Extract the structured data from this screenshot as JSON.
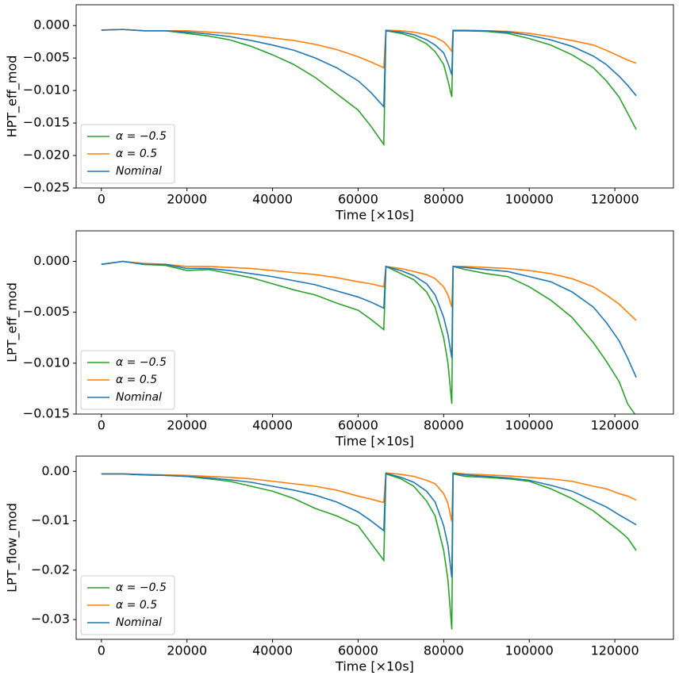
{
  "chart_data": [
    {
      "type": "line",
      "xlabel": "Time [×10s]",
      "ylabel": "HPT_eff_mod",
      "x": [
        0,
        5000,
        10000,
        15000,
        20000,
        25000,
        30000,
        35000,
        40000,
        45000,
        50000,
        55000,
        60000,
        63000,
        66000,
        66500,
        70000,
        73000,
        76000,
        78000,
        80000,
        81000,
        81900,
        82200,
        85000,
        90000,
        95000,
        100000,
        105000,
        110000,
        115000,
        118000,
        121000,
        123000,
        125000
      ],
      "series": [
        {
          "name": "α = −0.5",
          "color": "#2ca02c",
          "values": [
            -0.0007,
            -0.0006,
            -0.0008,
            -0.0008,
            -0.0012,
            -0.0016,
            -0.0022,
            -0.0032,
            -0.0045,
            -0.006,
            -0.008,
            -0.0105,
            -0.013,
            -0.0155,
            -0.0183,
            -0.0008,
            -0.0012,
            -0.0018,
            -0.0028,
            -0.004,
            -0.006,
            -0.0085,
            -0.011,
            -0.0008,
            -0.0008,
            -0.0009,
            -0.0012,
            -0.002,
            -0.003,
            -0.0045,
            -0.0065,
            -0.0085,
            -0.011,
            -0.0135,
            -0.016
          ]
        },
        {
          "name": "α = 0.5",
          "color": "#ff7f0e",
          "values": [
            -0.0007,
            -0.0006,
            -0.0008,
            -0.0008,
            -0.0008,
            -0.001,
            -0.0012,
            -0.0015,
            -0.0019,
            -0.0023,
            -0.0029,
            -0.0037,
            -0.0048,
            -0.0056,
            -0.0065,
            -0.0007,
            -0.0008,
            -0.001,
            -0.0014,
            -0.0018,
            -0.0025,
            -0.0032,
            -0.004,
            -0.0007,
            -0.0007,
            -0.0008,
            -0.0009,
            -0.0012,
            -0.0017,
            -0.0023,
            -0.003,
            -0.0038,
            -0.0047,
            -0.0053,
            -0.0058
          ]
        },
        {
          "name": "Nominal",
          "color": "#1f77b4",
          "values": [
            -0.0007,
            -0.0006,
            -0.0008,
            -0.0008,
            -0.001,
            -0.0013,
            -0.0017,
            -0.0023,
            -0.003,
            -0.0038,
            -0.005,
            -0.0065,
            -0.0085,
            -0.0103,
            -0.0125,
            -0.0008,
            -0.001,
            -0.0014,
            -0.0022,
            -0.003,
            -0.0042,
            -0.0058,
            -0.0076,
            -0.0008,
            -0.0008,
            -0.0008,
            -0.001,
            -0.0015,
            -0.0022,
            -0.0032,
            -0.0047,
            -0.006,
            -0.0078,
            -0.0092,
            -0.0108
          ]
        }
      ],
      "xlim": [
        -5900,
        133700
      ],
      "ylim": [
        -0.025,
        0.0032
      ],
      "xticks": [
        0,
        20000,
        40000,
        60000,
        80000,
        100000,
        120000
      ],
      "yticks": [
        {
          "value": 0,
          "label": "0.000"
        },
        {
          "value": -0.005,
          "label": "−0.005"
        },
        {
          "value": -0.01,
          "label": "−0.010"
        },
        {
          "value": -0.015,
          "label": "−0.015"
        },
        {
          "value": -0.02,
          "label": "−0.020"
        },
        {
          "value": -0.025,
          "label": "−0.025"
        }
      ],
      "legend": "lower left"
    },
    {
      "type": "line",
      "xlabel": "Time [×10s]",
      "ylabel": "LPT_eff_mod",
      "x": [
        0,
        5000,
        10000,
        15000,
        20000,
        25000,
        30000,
        35000,
        40000,
        45000,
        50000,
        55000,
        60000,
        63000,
        66000,
        66500,
        70000,
        73000,
        76000,
        78000,
        80000,
        81000,
        81900,
        82200,
        85000,
        90000,
        95000,
        100000,
        105000,
        110000,
        115000,
        118000,
        121000,
        123000,
        125000
      ],
      "series": [
        {
          "name": "α = −0.5",
          "color": "#2ca02c",
          "values": [
            -0.0003,
            0,
            -0.0003,
            -0.0004,
            -0.0009,
            -0.0008,
            -0.0012,
            -0.0016,
            -0.0022,
            -0.0028,
            -0.0033,
            -0.0041,
            -0.0048,
            -0.0057,
            -0.0067,
            -0.0005,
            -0.0012,
            -0.0018,
            -0.003,
            -0.0045,
            -0.0075,
            -0.01,
            -0.014,
            -0.0005,
            -0.0008,
            -0.0012,
            -0.0015,
            -0.0025,
            -0.0038,
            -0.0055,
            -0.008,
            -0.0098,
            -0.0118,
            -0.014,
            -0.0152
          ]
        },
        {
          "name": "α = 0.5",
          "color": "#ff7f0e",
          "values": [
            -0.0003,
            0,
            -0.0002,
            -0.0003,
            -0.0005,
            -0.0005,
            -0.0006,
            -0.0007,
            -0.0009,
            -0.0011,
            -0.0013,
            -0.0016,
            -0.002,
            -0.0022,
            -0.0025,
            -0.0005,
            -0.0007,
            -0.001,
            -0.0013,
            -0.0017,
            -0.0025,
            -0.0033,
            -0.0045,
            -0.0005,
            -0.0005,
            -0.0006,
            -0.0007,
            -0.0009,
            -0.0012,
            -0.0017,
            -0.0025,
            -0.0033,
            -0.0042,
            -0.005,
            -0.0058
          ]
        },
        {
          "name": "Nominal",
          "color": "#1f77b4",
          "values": [
            -0.0003,
            0,
            -0.0003,
            -0.0003,
            -0.0007,
            -0.0007,
            -0.0009,
            -0.0012,
            -0.0015,
            -0.0019,
            -0.0023,
            -0.0029,
            -0.0035,
            -0.004,
            -0.0046,
            -0.0005,
            -0.0009,
            -0.0014,
            -0.0022,
            -0.0033,
            -0.0055,
            -0.0072,
            -0.0095,
            -0.0005,
            -0.0006,
            -0.0008,
            -0.001,
            -0.0015,
            -0.002,
            -0.003,
            -0.0045,
            -0.006,
            -0.0078,
            -0.0095,
            -0.0114
          ]
        }
      ],
      "xlim": [
        -5900,
        133700
      ],
      "ylim": [
        -0.015,
        0.003
      ],
      "xticks": [
        0,
        20000,
        40000,
        60000,
        80000,
        100000,
        120000
      ],
      "yticks": [
        {
          "value": 0,
          "label": "0.000"
        },
        {
          "value": -0.005,
          "label": "−0.005"
        },
        {
          "value": -0.01,
          "label": "−0.010"
        },
        {
          "value": -0.015,
          "label": "−0.015"
        }
      ],
      "legend": "lower left"
    },
    {
      "type": "line",
      "xlabel": "Time [×10s]",
      "ylabel": "LPT_flow_mod",
      "x": [
        0,
        5000,
        10000,
        15000,
        20000,
        25000,
        30000,
        35000,
        40000,
        45000,
        50000,
        55000,
        60000,
        63000,
        66000,
        66500,
        70000,
        73000,
        76000,
        78000,
        80000,
        81000,
        81900,
        82200,
        85000,
        90000,
        95000,
        100000,
        105000,
        110000,
        115000,
        118000,
        121000,
        123000,
        125000
      ],
      "series": [
        {
          "name": "α = −0.5",
          "color": "#2ca02c",
          "values": [
            -0.0005,
            -0.0005,
            -0.0007,
            -0.0008,
            -0.001,
            -0.0015,
            -0.002,
            -0.003,
            -0.004,
            -0.0055,
            -0.0075,
            -0.009,
            -0.011,
            -0.0145,
            -0.018,
            -0.0005,
            -0.0015,
            -0.003,
            -0.006,
            -0.009,
            -0.016,
            -0.022,
            -0.032,
            -0.0005,
            -0.001,
            -0.0012,
            -0.0015,
            -0.002,
            -0.0035,
            -0.0055,
            -0.008,
            -0.01,
            -0.012,
            -0.0135,
            -0.016
          ]
        },
        {
          "name": "α = 0.5",
          "color": "#ff7f0e",
          "values": [
            -0.0005,
            -0.0005,
            -0.0006,
            -0.0007,
            -0.0008,
            -0.001,
            -0.0012,
            -0.0015,
            -0.002,
            -0.0025,
            -0.003,
            -0.0038,
            -0.005,
            -0.0056,
            -0.0063,
            -0.0003,
            -0.0006,
            -0.001,
            -0.0018,
            -0.0025,
            -0.0045,
            -0.0065,
            -0.0102,
            -0.0003,
            -0.0005,
            -0.0007,
            -0.0009,
            -0.0012,
            -0.0015,
            -0.002,
            -0.003,
            -0.0035,
            -0.0045,
            -0.005,
            -0.0058
          ]
        },
        {
          "name": "Nominal",
          "color": "#1f77b4",
          "values": [
            -0.0005,
            -0.0005,
            -0.0007,
            -0.0008,
            -0.001,
            -0.0013,
            -0.0017,
            -0.0022,
            -0.003,
            -0.0038,
            -0.0048,
            -0.0062,
            -0.0082,
            -0.01,
            -0.012,
            -0.0004,
            -0.0012,
            -0.0022,
            -0.004,
            -0.0062,
            -0.011,
            -0.015,
            -0.0215,
            -0.0004,
            -0.0007,
            -0.001,
            -0.0013,
            -0.0018,
            -0.0028,
            -0.004,
            -0.006,
            -0.0072,
            -0.0088,
            -0.0098,
            -0.0108
          ]
        }
      ],
      "xlim": [
        -5900,
        133700
      ],
      "ylim": [
        -0.034,
        0.0031
      ],
      "xticks": [
        0,
        20000,
        40000,
        60000,
        80000,
        100000,
        120000
      ],
      "yticks": [
        {
          "value": 0,
          "label": "0.00"
        },
        {
          "value": -0.01,
          "label": "−0.01"
        },
        {
          "value": -0.02,
          "label": "−0.02"
        },
        {
          "value": -0.03,
          "label": "−0.03"
        }
      ],
      "legend": "lower left"
    }
  ]
}
